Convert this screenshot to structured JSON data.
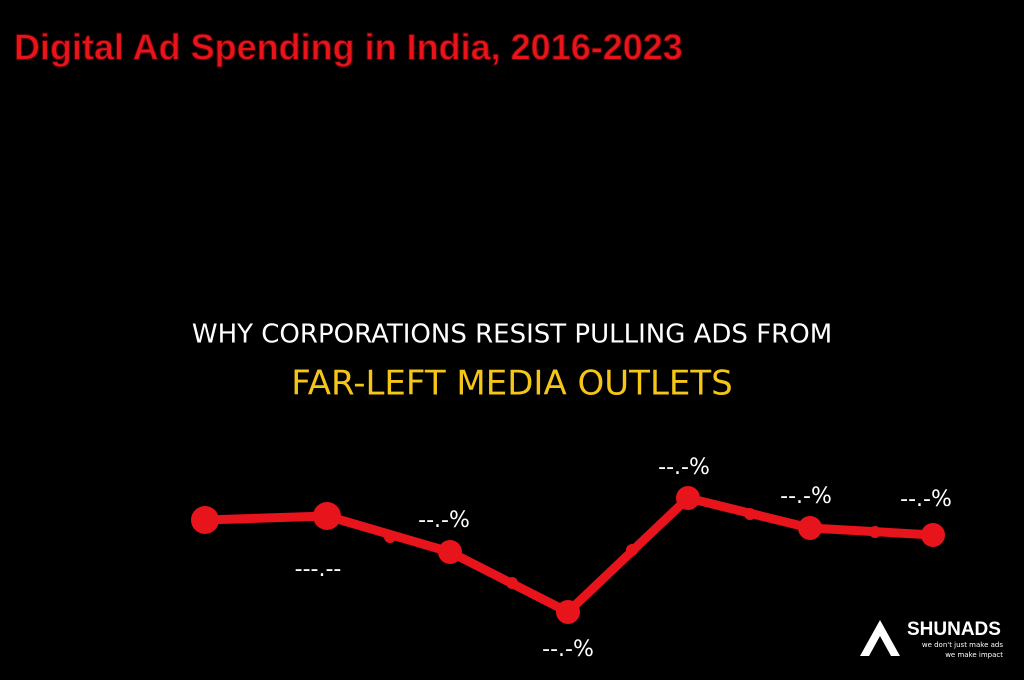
{
  "header": {
    "title": "Digital Ad Spending in India, 2016-2023"
  },
  "headline": {
    "line1": "WHY CORPORATIONS RESIST PULLING ADS FROM",
    "line2": "FAR-LEFT MEDIA OUTLETS"
  },
  "graphic": {
    "point_labels": [
      "---.--",
      "--.-%",
      "--.-%",
      "--.-%",
      "--.-%",
      "--.-%"
    ]
  },
  "logo": {
    "name": "SHUNADS",
    "tagline1": "we don't just make ads",
    "tagline2": "we make impact"
  }
}
